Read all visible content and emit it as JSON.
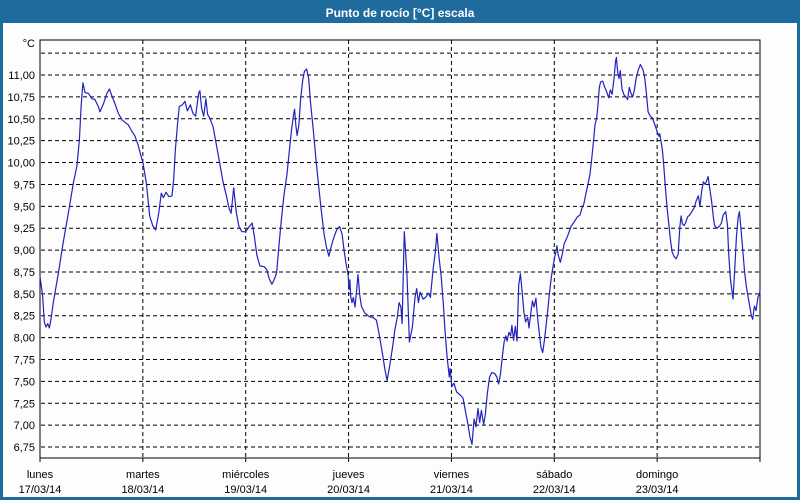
{
  "window": {
    "title": "Punto de rocío [°C] escala"
  },
  "colors": {
    "frame": "#1f6b9e",
    "titlebar_bg": "#1f6b9e",
    "title_text": "#ffffff",
    "plot_background": "#fdfdfd",
    "plot_border": "#000000",
    "grid": "#000000",
    "line": "#2222bd",
    "tick_text": "#000000"
  },
  "chart_data": {
    "type": "line",
    "title": "Punto de rocío [°C] escala",
    "series_name": "Punto de rocío",
    "unit_label": "°C",
    "grid": "dashed",
    "legend": "none",
    "ylim": [
      6.625,
      11.4
    ],
    "y_axis": {
      "ticks": [
        {
          "value": 11.25,
          "label": ""
        },
        {
          "value": 11.0,
          "label": "11,00"
        },
        {
          "value": 10.75,
          "label": "10,75"
        },
        {
          "value": 10.5,
          "label": "10,50"
        },
        {
          "value": 10.25,
          "label": "10,25"
        },
        {
          "value": 10.0,
          "label": "10,00"
        },
        {
          "value": 9.75,
          "label": "9,75"
        },
        {
          "value": 9.5,
          "label": "9,50"
        },
        {
          "value": 9.25,
          "label": "9,25"
        },
        {
          "value": 9.0,
          "label": "9,00"
        },
        {
          "value": 8.75,
          "label": "8,75"
        },
        {
          "value": 8.5,
          "label": "8,50"
        },
        {
          "value": 8.25,
          "label": "8,25"
        },
        {
          "value": 8.0,
          "label": "8,00"
        },
        {
          "value": 7.75,
          "label": "7,75"
        },
        {
          "value": 7.5,
          "label": "7,50"
        },
        {
          "value": 7.25,
          "label": "7,25"
        },
        {
          "value": 7.0,
          "label": "7,00"
        },
        {
          "value": 6.75,
          "label": "6,75"
        }
      ]
    },
    "x_axis": {
      "hours_total": 168,
      "tick_interval_hours": 24,
      "days": [
        {
          "name": "lunes",
          "date": "17/03/14"
        },
        {
          "name": "martes",
          "date": "18/03/14"
        },
        {
          "name": "miércoles",
          "date": "19/03/14"
        },
        {
          "name": "jueves",
          "date": "20/03/14"
        },
        {
          "name": "viernes",
          "date": "21/03/14"
        },
        {
          "name": "sábado",
          "date": "22/03/14"
        },
        {
          "name": "domingo",
          "date": "23/03/14"
        }
      ]
    },
    "points": [
      [
        0,
        8.7
      ],
      [
        0.6,
        8.48
      ],
      [
        1,
        8.18
      ],
      [
        1.4,
        8.12
      ],
      [
        1.8,
        8.16
      ],
      [
        2.2,
        8.11
      ],
      [
        2.6,
        8.22
      ],
      [
        3.1,
        8.4
      ],
      [
        4.3,
        8.74
      ],
      [
        5.4,
        9.08
      ],
      [
        6.6,
        9.42
      ],
      [
        7.8,
        9.77
      ],
      [
        8.6,
        9.96
      ],
      [
        9.2,
        10.26
      ],
      [
        9.6,
        10.64
      ],
      [
        10,
        10.91
      ],
      [
        10.5,
        10.8
      ],
      [
        11.3,
        10.79
      ],
      [
        12.1,
        10.73
      ],
      [
        12.8,
        10.72
      ],
      [
        13.6,
        10.64
      ],
      [
        14,
        10.58
      ],
      [
        14.8,
        10.67
      ],
      [
        15.6,
        10.79
      ],
      [
        16.2,
        10.84
      ],
      [
        16.7,
        10.77
      ],
      [
        17.5,
        10.67
      ],
      [
        18.3,
        10.56
      ],
      [
        19.1,
        10.49
      ],
      [
        19.8,
        10.46
      ],
      [
        20.6,
        10.43
      ],
      [
        21.4,
        10.36
      ],
      [
        22.2,
        10.3
      ],
      [
        22.9,
        10.2
      ],
      [
        23.7,
        10.05
      ],
      [
        24,
        10.0
      ],
      [
        24.8,
        9.77
      ],
      [
        25.6,
        9.39
      ],
      [
        26.3,
        9.28
      ],
      [
        27,
        9.23
      ],
      [
        27.7,
        9.42
      ],
      [
        28.3,
        9.65
      ],
      [
        28.8,
        9.6
      ],
      [
        29.4,
        9.66
      ],
      [
        30.1,
        9.61
      ],
      [
        30.8,
        9.62
      ],
      [
        31.2,
        9.81
      ],
      [
        31.6,
        10.15
      ],
      [
        32.1,
        10.45
      ],
      [
        32.5,
        10.64
      ],
      [
        33.2,
        10.66
      ],
      [
        33.8,
        10.7
      ],
      [
        34.4,
        10.59
      ],
      [
        35.1,
        10.66
      ],
      [
        35.7,
        10.56
      ],
      [
        36.3,
        10.53
      ],
      [
        37,
        10.79
      ],
      [
        37.3,
        10.82
      ],
      [
        37.7,
        10.62
      ],
      [
        38.2,
        10.53
      ],
      [
        38.7,
        10.73
      ],
      [
        39.1,
        10.55
      ],
      [
        39.6,
        10.51
      ],
      [
        40.4,
        10.41
      ],
      [
        41.1,
        10.22
      ],
      [
        41.9,
        10.0
      ],
      [
        42.7,
        9.78
      ],
      [
        43.5,
        9.62
      ],
      [
        44.1,
        9.48
      ],
      [
        44.6,
        9.42
      ],
      [
        45.2,
        9.71
      ],
      [
        45.8,
        9.43
      ],
      [
        46.4,
        9.27
      ],
      [
        47.1,
        9.21
      ],
      [
        48,
        9.21
      ],
      [
        49,
        9.28
      ],
      [
        49.5,
        9.31
      ],
      [
        50,
        9.16
      ],
      [
        50.6,
        8.94
      ],
      [
        51.3,
        8.82
      ],
      [
        52.3,
        8.81
      ],
      [
        52.9,
        8.78
      ],
      [
        53.5,
        8.67
      ],
      [
        54.1,
        8.61
      ],
      [
        54.7,
        8.67
      ],
      [
        55.2,
        8.74
      ],
      [
        55.7,
        9.02
      ],
      [
        56.3,
        9.34
      ],
      [
        56.9,
        9.62
      ],
      [
        57.6,
        9.86
      ],
      [
        58.2,
        10.14
      ],
      [
        58.7,
        10.38
      ],
      [
        59.2,
        10.56
      ],
      [
        59.4,
        10.61
      ],
      [
        59.7,
        10.42
      ],
      [
        60,
        10.31
      ],
      [
        60.4,
        10.43
      ],
      [
        60.8,
        10.72
      ],
      [
        61.3,
        10.94
      ],
      [
        61.7,
        11.04
      ],
      [
        62.2,
        11.07
      ],
      [
        62.7,
        10.96
      ],
      [
        63.1,
        10.7
      ],
      [
        63.8,
        10.36
      ],
      [
        64.4,
        10.03
      ],
      [
        65,
        9.74
      ],
      [
        65.6,
        9.47
      ],
      [
        66.3,
        9.18
      ],
      [
        66.9,
        9.02
      ],
      [
        67.4,
        8.93
      ],
      [
        68,
        9.05
      ],
      [
        68.6,
        9.15
      ],
      [
        69.2,
        9.23
      ],
      [
        69.9,
        9.27
      ],
      [
        70.5,
        9.18
      ],
      [
        70.9,
        9.01
      ],
      [
        71.4,
        8.85
      ],
      [
        71.9,
        8.72
      ],
      [
        72.1,
        8.55
      ],
      [
        72.3,
        8.66
      ],
      [
        72.5,
        8.47
      ],
      [
        72.8,
        8.4
      ],
      [
        73.1,
        8.46
      ],
      [
        73.5,
        8.35
      ],
      [
        73.9,
        8.55
      ],
      [
        74.2,
        8.72
      ],
      [
        74.6,
        8.49
      ],
      [
        75,
        8.36
      ],
      [
        75.8,
        8.28
      ],
      [
        76.8,
        8.24
      ],
      [
        77.7,
        8.23
      ],
      [
        78.5,
        8.2
      ],
      [
        79.1,
        8.05
      ],
      [
        79.9,
        7.82
      ],
      [
        80.5,
        7.63
      ],
      [
        81,
        7.51
      ],
      [
        81.6,
        7.68
      ],
      [
        82.2,
        7.87
      ],
      [
        82.8,
        8.09
      ],
      [
        83.4,
        8.24
      ],
      [
        83.8,
        8.4
      ],
      [
        84.2,
        8.35
      ],
      [
        84.5,
        8.16
      ],
      [
        85,
        9.21
      ],
      [
        85.6,
        8.74
      ],
      [
        86.2,
        7.95
      ],
      [
        86.9,
        8.12
      ],
      [
        87.5,
        8.46
      ],
      [
        87.9,
        8.56
      ],
      [
        88.3,
        8.4
      ],
      [
        88.7,
        8.52
      ],
      [
        89.4,
        8.44
      ],
      [
        90,
        8.46
      ],
      [
        90.6,
        8.51
      ],
      [
        91.1,
        8.46
      ],
      [
        91.7,
        8.77
      ],
      [
        92.2,
        8.96
      ],
      [
        92.6,
        9.19
      ],
      [
        93.1,
        8.92
      ],
      [
        93.6,
        8.71
      ],
      [
        94.1,
        8.39
      ],
      [
        94.5,
        8.08
      ],
      [
        95,
        7.78
      ],
      [
        95.5,
        7.55
      ],
      [
        95.7,
        7.65
      ],
      [
        96.1,
        7.44
      ],
      [
        96.6,
        7.48
      ],
      [
        97.2,
        7.38
      ],
      [
        97.9,
        7.35
      ],
      [
        98.7,
        7.31
      ],
      [
        99.2,
        7.18
      ],
      [
        99.9,
        7.0
      ],
      [
        100.3,
        6.87
      ],
      [
        100.8,
        6.78
      ],
      [
        101.3,
        7.07
      ],
      [
        101.7,
        6.98
      ],
      [
        102.2,
        7.19
      ],
      [
        102.6,
        7.03
      ],
      [
        103,
        7.17
      ],
      [
        103.5,
        7.01
      ],
      [
        103.9,
        7.12
      ],
      [
        104.4,
        7.37
      ],
      [
        104.9,
        7.55
      ],
      [
        105.4,
        7.6
      ],
      [
        106.1,
        7.59
      ],
      [
        106.6,
        7.55
      ],
      [
        107,
        7.47
      ],
      [
        107.4,
        7.57
      ],
      [
        107.9,
        7.79
      ],
      [
        108.3,
        7.95
      ],
      [
        108.7,
        8.02
      ],
      [
        109,
        7.96
      ],
      [
        109.4,
        8.06
      ],
      [
        109.8,
        8.02
      ],
      [
        110.1,
        8.14
      ],
      [
        110.5,
        7.97
      ],
      [
        110.9,
        8.13
      ],
      [
        111.3,
        7.96
      ],
      [
        111.7,
        8.6
      ],
      [
        112.1,
        8.73
      ],
      [
        112.5,
        8.53
      ],
      [
        112.9,
        8.29
      ],
      [
        113.3,
        8.18
      ],
      [
        113.8,
        8.23
      ],
      [
        114.1,
        8.11
      ],
      [
        114.5,
        8.27
      ],
      [
        114.9,
        8.42
      ],
      [
        115.3,
        8.35
      ],
      [
        115.7,
        8.45
      ],
      [
        116.1,
        8.23
      ],
      [
        116.5,
        8.05
      ],
      [
        116.9,
        7.89
      ],
      [
        117.3,
        7.83
      ],
      [
        117.7,
        7.97
      ],
      [
        118.1,
        8.14
      ],
      [
        118.5,
        8.33
      ],
      [
        118.9,
        8.52
      ],
      [
        119.3,
        8.69
      ],
      [
        119.7,
        8.81
      ],
      [
        120.1,
        8.92
      ],
      [
        120.4,
        8.98
      ],
      [
        120.6,
        9.05
      ],
      [
        120.9,
        8.95
      ],
      [
        121.4,
        8.86
      ],
      [
        121.9,
        8.96
      ],
      [
        122.3,
        9.07
      ],
      [
        123.1,
        9.16
      ],
      [
        123.9,
        9.27
      ],
      [
        124.6,
        9.32
      ],
      [
        125.4,
        9.38
      ],
      [
        126,
        9.4
      ],
      [
        126.4,
        9.47
      ],
      [
        126.9,
        9.53
      ],
      [
        127.4,
        9.65
      ],
      [
        127.9,
        9.76
      ],
      [
        128.3,
        9.86
      ],
      [
        128.7,
        10.03
      ],
      [
        129.1,
        10.22
      ],
      [
        129.5,
        10.43
      ],
      [
        129.9,
        10.51
      ],
      [
        130.2,
        10.66
      ],
      [
        130.5,
        10.86
      ],
      [
        130.8,
        10.92
      ],
      [
        131.3,
        10.93
      ],
      [
        131.7,
        10.87
      ],
      [
        132.2,
        10.81
      ],
      [
        132.7,
        10.74
      ],
      [
        133.1,
        10.83
      ],
      [
        133.5,
        10.78
      ],
      [
        133.9,
        10.95
      ],
      [
        134.3,
        11.16
      ],
      [
        134.5,
        11.2
      ],
      [
        134.8,
        11.03
      ],
      [
        135.1,
        10.96
      ],
      [
        135.4,
        11.05
      ],
      [
        135.8,
        10.84
      ],
      [
        136.3,
        10.77
      ],
      [
        136.7,
        10.75
      ],
      [
        137.1,
        10.72
      ],
      [
        137.5,
        10.86
      ],
      [
        137.9,
        10.79
      ],
      [
        138.3,
        10.75
      ],
      [
        138.7,
        10.83
      ],
      [
        139.1,
        10.96
      ],
      [
        139.6,
        11.06
      ],
      [
        140.1,
        11.12
      ],
      [
        140.7,
        11.06
      ],
      [
        141.1,
        10.97
      ],
      [
        141.5,
        10.79
      ],
      [
        141.9,
        10.58
      ],
      [
        142.4,
        10.53
      ],
      [
        142.9,
        10.51
      ],
      [
        143.4,
        10.44
      ],
      [
        143.9,
        10.37
      ],
      [
        144.4,
        10.3
      ],
      [
        144.6,
        10.33
      ],
      [
        144.9,
        10.24
      ],
      [
        145.2,
        10.15
      ],
      [
        145.5,
        9.99
      ],
      [
        145.9,
        9.73
      ],
      [
        146.3,
        9.49
      ],
      [
        146.7,
        9.31
      ],
      [
        147.1,
        9.12
      ],
      [
        147.5,
        8.98
      ],
      [
        147.9,
        8.93
      ],
      [
        148.4,
        8.9
      ],
      [
        148.9,
        8.95
      ],
      [
        149.3,
        9.27
      ],
      [
        149.6,
        9.39
      ],
      [
        149.9,
        9.3
      ],
      [
        150.3,
        9.28
      ],
      [
        150.7,
        9.32
      ],
      [
        151.1,
        9.38
      ],
      [
        151.6,
        9.4
      ],
      [
        152.1,
        9.44
      ],
      [
        152.7,
        9.49
      ],
      [
        153.1,
        9.56
      ],
      [
        153.6,
        9.62
      ],
      [
        154,
        9.5
      ],
      [
        154.4,
        9.68
      ],
      [
        154.8,
        9.78
      ],
      [
        155.2,
        9.75
      ],
      [
        155.6,
        9.8
      ],
      [
        155.9,
        9.84
      ],
      [
        156.3,
        9.69
      ],
      [
        156.7,
        9.56
      ],
      [
        157.1,
        9.38
      ],
      [
        157.4,
        9.28
      ],
      [
        158,
        9.25
      ],
      [
        158.5,
        9.27
      ],
      [
        159,
        9.31
      ],
      [
        159.4,
        9.4
      ],
      [
        160,
        9.44
      ],
      [
        160.4,
        9.29
      ],
      [
        160.7,
        8.96
      ],
      [
        161.1,
        8.67
      ],
      [
        161.7,
        8.44
      ],
      [
        162.1,
        8.77
      ],
      [
        162.5,
        9.15
      ],
      [
        162.9,
        9.37
      ],
      [
        163.2,
        9.44
      ],
      [
        163.6,
        9.23
      ],
      [
        164,
        8.98
      ],
      [
        164.4,
        8.75
      ],
      [
        164.8,
        8.59
      ],
      [
        165.2,
        8.47
      ],
      [
        165.6,
        8.36
      ],
      [
        166,
        8.25
      ],
      [
        166.3,
        8.21
      ],
      [
        166.7,
        8.36
      ],
      [
        167.1,
        8.31
      ],
      [
        167.5,
        8.46
      ],
      [
        167.9,
        8.5
      ],
      [
        168,
        8.55
      ]
    ]
  }
}
